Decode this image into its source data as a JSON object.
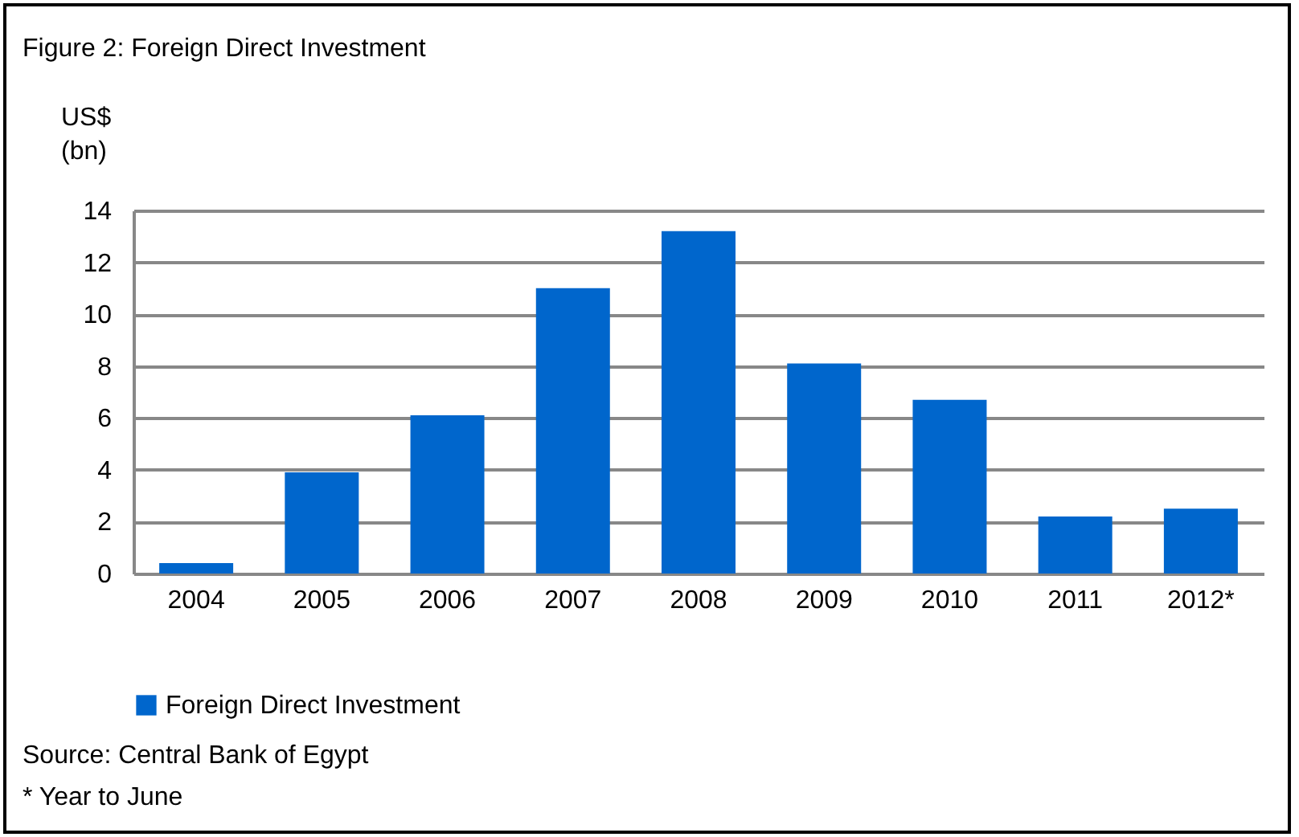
{
  "chart_data": {
    "type": "bar",
    "title": "Figure 2: Foreign Direct Investment",
    "ylabel": "US$ (bn)",
    "categories": [
      "2004",
      "2005",
      "2006",
      "2007",
      "2008",
      "2009",
      "2010",
      "2011",
      "2012*"
    ],
    "series": [
      {
        "name": "Foreign Direct Investment",
        "color": "#0066cc",
        "values": [
          0.4,
          3.9,
          6.1,
          11.0,
          13.2,
          8.1,
          6.7,
          2.2,
          2.5
        ]
      }
    ],
    "ylim": [
      0,
      14
    ],
    "yticks": [
      0,
      2,
      4,
      6,
      8,
      10,
      12,
      14
    ],
    "grid": "y",
    "legend": "bottom",
    "annotations": [
      "Source: Central Bank of Egypt",
      "* Year to June"
    ]
  }
}
